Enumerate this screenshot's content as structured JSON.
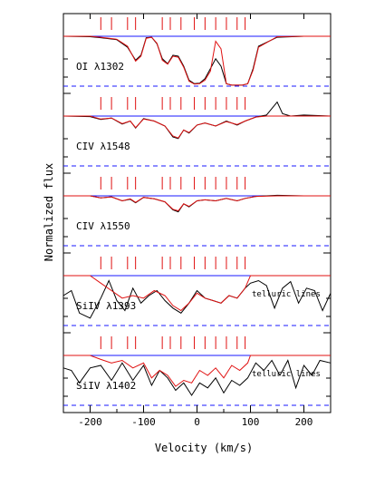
{
  "chart_data": {
    "type": "line",
    "xlabel": "Velocity (km/s)",
    "ylabel": "Normalized flux",
    "xlim": [
      -250,
      250
    ],
    "xticks": [
      -200,
      -100,
      0,
      100,
      200
    ],
    "grid": false,
    "component_velocities_kms": [
      -180,
      -160,
      -130,
      -115,
      -65,
      -50,
      -30,
      -5,
      15,
      35,
      55,
      75,
      90
    ],
    "series_styles": {
      "observed": "#000000",
      "model": "#e01010",
      "continuum": "#1a1aff",
      "zero_level": "#1a1aff"
    },
    "panels": [
      {
        "label": "OI λ1302",
        "annotation": "",
        "observed": {
          "x": [
            -250,
            -200,
            -180,
            -150,
            -130,
            -115,
            -105,
            -95,
            -85,
            -75,
            -65,
            -55,
            -45,
            -35,
            -25,
            -15,
            -5,
            5,
            15,
            25,
            35,
            45,
            55,
            65,
            75,
            85,
            95,
            105,
            115,
            150,
            200,
            250
          ],
          "y": [
            1.0,
            0.99,
            0.97,
            0.93,
            0.78,
            0.52,
            0.62,
            0.97,
            0.98,
            0.85,
            0.55,
            0.45,
            0.62,
            0.6,
            0.4,
            0.12,
            0.05,
            0.06,
            0.15,
            0.35,
            0.55,
            0.4,
            0.05,
            0.02,
            0.02,
            0.02,
            0.05,
            0.35,
            0.8,
            0.98,
            1.0,
            1.0
          ]
        },
        "model": {
          "x": [
            -250,
            -200,
            -180,
            -150,
            -130,
            -115,
            -105,
            -95,
            -85,
            -75,
            -65,
            -55,
            -45,
            -35,
            -25,
            -15,
            -5,
            5,
            15,
            25,
            35,
            45,
            55,
            65,
            75,
            85,
            95,
            105,
            115,
            150,
            200,
            250
          ],
          "y": [
            1.0,
            1.0,
            0.98,
            0.94,
            0.8,
            0.5,
            0.6,
            0.96,
            0.98,
            0.86,
            0.52,
            0.44,
            0.6,
            0.58,
            0.38,
            0.1,
            0.04,
            0.05,
            0.12,
            0.3,
            0.9,
            0.75,
            0.05,
            0.02,
            0.02,
            0.02,
            0.05,
            0.32,
            0.78,
            0.99,
            1.0,
            1.0
          ]
        }
      },
      {
        "label": "CIV λ1548",
        "annotation": "",
        "observed": {
          "x": [
            -250,
            -200,
            -180,
            -160,
            -140,
            -125,
            -115,
            -100,
            -80,
            -60,
            -45,
            -35,
            -25,
            -15,
            0,
            15,
            35,
            55,
            75,
            90,
            110,
            130,
            150,
            160,
            175,
            200,
            250
          ],
          "y": [
            1.0,
            0.99,
            0.93,
            0.96,
            0.84,
            0.9,
            0.76,
            0.95,
            0.9,
            0.8,
            0.58,
            0.55,
            0.72,
            0.66,
            0.82,
            0.86,
            0.8,
            0.9,
            0.82,
            0.9,
            0.98,
            1.02,
            1.28,
            1.05,
            1.0,
            1.02,
            1.0
          ]
        },
        "model": {
          "x": [
            -250,
            -200,
            -180,
            -160,
            -140,
            -125,
            -115,
            -100,
            -80,
            -60,
            -45,
            -35,
            -25,
            -15,
            0,
            15,
            35,
            55,
            75,
            90,
            110,
            130,
            150,
            175,
            200,
            250
          ],
          "y": [
            1.0,
            1.0,
            0.94,
            0.96,
            0.85,
            0.9,
            0.77,
            0.94,
            0.9,
            0.8,
            0.6,
            0.56,
            0.72,
            0.67,
            0.82,
            0.86,
            0.8,
            0.89,
            0.83,
            0.9,
            0.98,
            1.0,
            1.0,
            1.0,
            1.0,
            1.0
          ]
        }
      },
      {
        "label": "CIV λ1550",
        "annotation": "",
        "observed": {
          "x": [
            -250,
            -200,
            -180,
            -160,
            -140,
            -125,
            -115,
            -100,
            -80,
            -60,
            -45,
            -35,
            -25,
            -15,
            0,
            15,
            35,
            55,
            75,
            90,
            110,
            150,
            200,
            250
          ],
          "y": [
            1.0,
            1.0,
            0.96,
            0.98,
            0.9,
            0.93,
            0.86,
            0.97,
            0.94,
            0.88,
            0.72,
            0.68,
            0.84,
            0.78,
            0.9,
            0.92,
            0.9,
            0.95,
            0.9,
            0.95,
            0.99,
            1.01,
            1.0,
            1.0
          ]
        },
        "model": {
          "x": [
            -250,
            -200,
            -180,
            -160,
            -140,
            -125,
            -115,
            -100,
            -80,
            -60,
            -45,
            -35,
            -25,
            -15,
            0,
            15,
            35,
            55,
            75,
            90,
            110,
            150,
            200,
            250
          ],
          "y": [
            1.0,
            1.0,
            0.96,
            0.98,
            0.9,
            0.94,
            0.87,
            0.97,
            0.94,
            0.88,
            0.73,
            0.7,
            0.84,
            0.79,
            0.9,
            0.92,
            0.9,
            0.95,
            0.9,
            0.95,
            0.99,
            1.0,
            1.0,
            1.0
          ]
        }
      },
      {
        "label": "SiIV λ1393",
        "annotation": "telluric lines",
        "observed": {
          "x": [
            -250,
            -235,
            -220,
            -200,
            -180,
            -165,
            -150,
            -135,
            -120,
            -105,
            -90,
            -75,
            -60,
            -45,
            -30,
            -15,
            0,
            15,
            30,
            45,
            60,
            75,
            90,
            100,
            115,
            130,
            145,
            160,
            175,
            190,
            205,
            220,
            235,
            250
          ],
          "y": [
            0.6,
            0.7,
            0.25,
            0.15,
            0.55,
            0.9,
            0.5,
            0.3,
            0.75,
            0.45,
            0.6,
            0.7,
            0.5,
            0.35,
            0.25,
            0.45,
            0.7,
            0.55,
            0.5,
            0.45,
            0.6,
            0.55,
            0.75,
            0.85,
            0.9,
            0.8,
            0.35,
            0.75,
            0.88,
            0.45,
            0.75,
            0.7,
            0.3,
            0.65
          ]
        },
        "model": {
          "x": [
            -250,
            -200,
            -180,
            -160,
            -140,
            -120,
            -100,
            -80,
            -60,
            -45,
            -30,
            -15,
            0,
            15,
            30,
            45,
            60,
            75,
            90,
            100,
            150,
            250
          ],
          "y": [
            1.0,
            1.0,
            0.85,
            0.7,
            0.55,
            0.6,
            0.55,
            0.7,
            0.6,
            0.4,
            0.3,
            0.45,
            0.65,
            0.55,
            0.5,
            0.45,
            0.6,
            0.55,
            0.75,
            1.0,
            1.0,
            1.0
          ]
        }
      },
      {
        "label": "SiIV λ1402",
        "annotation": "telluric lines",
        "observed": {
          "x": [
            -250,
            -235,
            -220,
            -200,
            -180,
            -160,
            -140,
            -120,
            -100,
            -85,
            -70,
            -55,
            -40,
            -25,
            -10,
            5,
            20,
            35,
            50,
            65,
            80,
            95,
            110,
            125,
            140,
            155,
            170,
            185,
            200,
            215,
            230,
            250
          ],
          "y": [
            0.75,
            0.7,
            0.45,
            0.75,
            0.8,
            0.5,
            0.85,
            0.5,
            0.8,
            0.4,
            0.7,
            0.55,
            0.3,
            0.45,
            0.2,
            0.45,
            0.35,
            0.55,
            0.25,
            0.5,
            0.4,
            0.55,
            0.85,
            0.7,
            0.9,
            0.6,
            0.9,
            0.35,
            0.8,
            0.6,
            0.9,
            0.85
          ]
        },
        "model": {
          "x": [
            -250,
            -200,
            -180,
            -160,
            -140,
            -120,
            -100,
            -85,
            -70,
            -55,
            -40,
            -25,
            -10,
            5,
            20,
            35,
            50,
            65,
            80,
            95,
            100,
            150,
            250
          ],
          "y": [
            1.0,
            1.0,
            0.92,
            0.85,
            0.9,
            0.75,
            0.85,
            0.55,
            0.7,
            0.6,
            0.38,
            0.5,
            0.45,
            0.7,
            0.6,
            0.75,
            0.55,
            0.8,
            0.7,
            0.85,
            1.0,
            1.0,
            1.0
          ]
        }
      }
    ]
  }
}
